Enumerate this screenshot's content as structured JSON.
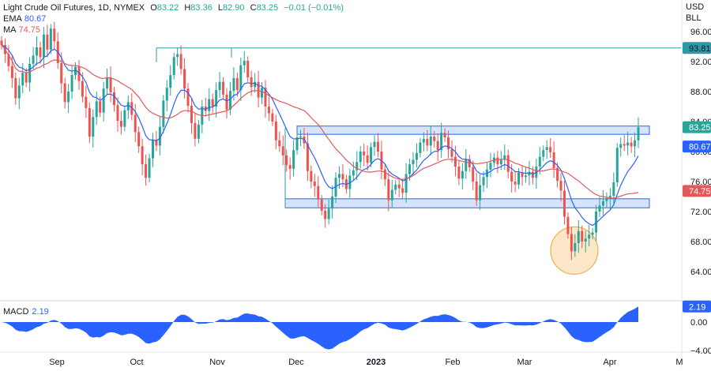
{
  "instrument": {
    "title": "Light Crude Oil Futures, 1D, NYMEX",
    "ohlc": [
      {
        "label": "O",
        "value": "83.22"
      },
      {
        "label": "H",
        "value": "83.36"
      },
      {
        "label": "L",
        "value": "82.90"
      },
      {
        "label": "C",
        "value": "83.25"
      }
    ],
    "change": "−0.01 (−0.01%)",
    "currency": "USD",
    "unit": "BLL"
  },
  "indicators": {
    "ema": {
      "label": "EMA",
      "value": "80.67",
      "color": "#2962ff"
    },
    "ma": {
      "label": "MA",
      "value": "74.75",
      "color": "#e05a5a"
    },
    "macd": {
      "label": "MACD",
      "value": "2.19",
      "color": "#2962ff"
    }
  },
  "colors": {
    "up": "#26a69a",
    "down": "#ef5350",
    "zone_fill": "#d6e4fb",
    "zone_stroke": "#2962ff",
    "resistance_line": "#2b9aa8",
    "highlight_circle_fill": "#fde3c0",
    "highlight_circle_stroke": "#f0b050"
  },
  "chart_data": {
    "type": "candlestick",
    "price_axis": {
      "ticks": [
        "96.00",
        "92.00",
        "88.00",
        "84.00",
        "80.00",
        "76.00",
        "72.00",
        "68.00",
        "64.00"
      ],
      "range": [
        60,
        100
      ]
    },
    "macd_axis": {
      "ticks": [
        "0.00",
        "−4.00"
      ],
      "range": [
        -4.5,
        4.5
      ]
    },
    "x_labels": [
      "Sep",
      "Oct",
      "Nov",
      "Dec",
      "2023",
      "Feb",
      "Mar",
      "Apr",
      "M"
    ],
    "bold_x_labels": [
      "2023"
    ],
    "price_badges": [
      {
        "label": "93.81",
        "value": 93.81,
        "color": "#2b9aa8",
        "text_color": "#131722"
      },
      {
        "label": "83.25",
        "value": 83.25,
        "color": "#26a69a",
        "text_color": "#ffffff"
      },
      {
        "label": "80.67",
        "value": 80.67,
        "color": "#2962ff",
        "text_color": "#ffffff"
      },
      {
        "label": "74.75",
        "value": 74.75,
        "color": "#e05a5a",
        "text_color": "#ffffff"
      }
    ],
    "macd_badge": {
      "label": "2.19",
      "value": 2.19,
      "color": "#2962ff"
    },
    "horizontal_levels": [
      {
        "name": "resistance",
        "value": 93.81
      }
    ],
    "zones": [
      {
        "name": "upper-zone",
        "low": 82.3,
        "high": 83.4
      },
      {
        "name": "lower-zone",
        "low": 72.5,
        "high": 73.7
      }
    ],
    "closes": [
      94.2,
      93.0,
      91.4,
      89.8,
      87.1,
      88.8,
      90.5,
      89.2,
      91.7,
      92.8,
      93.9,
      92.6,
      95.6,
      93.6,
      96.4,
      94.7,
      91.8,
      89.1,
      86.6,
      88.0,
      90.2,
      91.3,
      89.4,
      87.3,
      85.8,
      82.0,
      84.6,
      86.7,
      85.2,
      88.4,
      89.9,
      87.9,
      86.2,
      84.1,
      83.3,
      85.5,
      86.6,
      84.9,
      82.6,
      80.7,
      78.3,
      76.5,
      79.1,
      81.6,
      80.8,
      83.3,
      86.8,
      88.5,
      90.2,
      92.6,
      93.0,
      91.0,
      88.4,
      86.1,
      83.8,
      81.7,
      83.6,
      86.0,
      85.4,
      87.0,
      86.0,
      88.2,
      89.3,
      87.6,
      85.6,
      88.1,
      89.8,
      88.2,
      91.5,
      92.1,
      89.9,
      88.6,
      89.3,
      87.2,
      88.5,
      86.0,
      85.1,
      84.0,
      81.5,
      80.7,
      79.5,
      78.2,
      77.7,
      80.2,
      81.9,
      82.0,
      81.1,
      77.4,
      76.0,
      75.4,
      73.6,
      72.1,
      71.0,
      72.4,
      74.0,
      76.5,
      77.0,
      76.3,
      75.0,
      76.8,
      77.5,
      78.6,
      80.0,
      79.5,
      78.5,
      80.6,
      81.3,
      80.0,
      77.6,
      76.3,
      73.5,
      74.9,
      75.6,
      75.1,
      74.5,
      77.0,
      78.3,
      78.9,
      79.8,
      81.2,
      81.7,
      80.8,
      82.0,
      81.4,
      80.2,
      82.5,
      81.9,
      80.3,
      79.3,
      78.0,
      76.4,
      77.4,
      79.0,
      77.9,
      76.0,
      73.5,
      75.5,
      76.6,
      77.6,
      78.5,
      79.2,
      78.3,
      78.9,
      79.5,
      77.3,
      76.0,
      75.6,
      77.2,
      76.6,
      76.8,
      77.3,
      76.5,
      78.0,
      79.3,
      80.2,
      80.6,
      79.9,
      77.8,
      76.1,
      74.8,
      71.3,
      69.0,
      66.7,
      67.8,
      69.4,
      68.0,
      68.4,
      68.9,
      69.2,
      72.0,
      72.8,
      73.4,
      73.8,
      74.1,
      75.9,
      80.5,
      81.0,
      80.8,
      81.2,
      80.7,
      81.5,
      83.25
    ],
    "ema": {
      "period": 20,
      "last": 80.67
    },
    "ma": {
      "period": 50,
      "last": 74.75
    },
    "macd_last": 2.19,
    "annotation": {
      "name": "low-highlight",
      "price": 66.8
    }
  }
}
